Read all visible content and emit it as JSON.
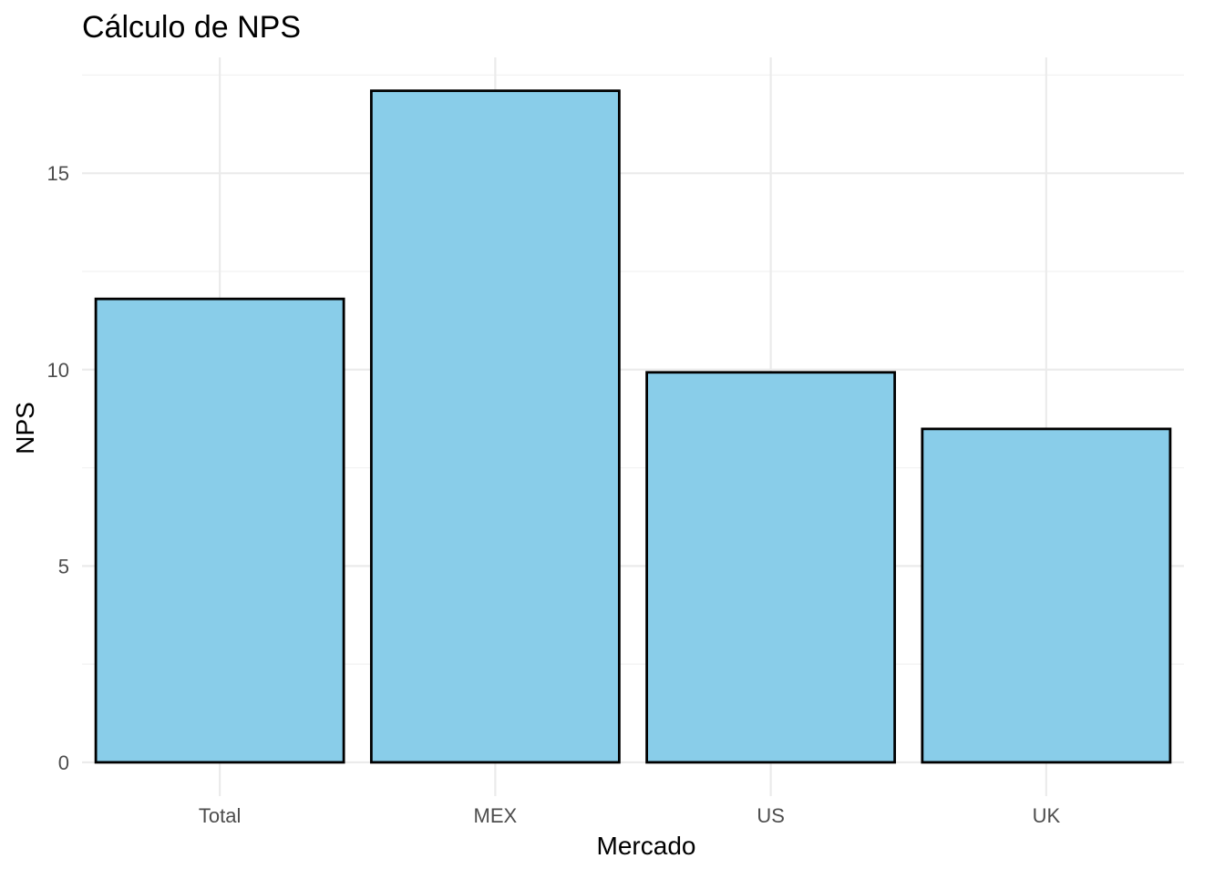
{
  "chart_data": {
    "type": "bar",
    "title": "Cálculo de NPS",
    "xlabel": "Mercado",
    "ylabel": "NPS",
    "categories": [
      "Total",
      "MEX",
      "US",
      "UK"
    ],
    "values": [
      11.8,
      17.1,
      9.93,
      8.49
    ],
    "ylim": [
      -0.86,
      17.95
    ],
    "yticks": [
      0,
      5,
      10,
      15
    ],
    "yminor": [
      2.5,
      7.5,
      12.5,
      17.5
    ],
    "grid": true,
    "legend": "none",
    "colors": {
      "bar_fill": "#89CDE9",
      "bar_outline": "#000000"
    }
  }
}
